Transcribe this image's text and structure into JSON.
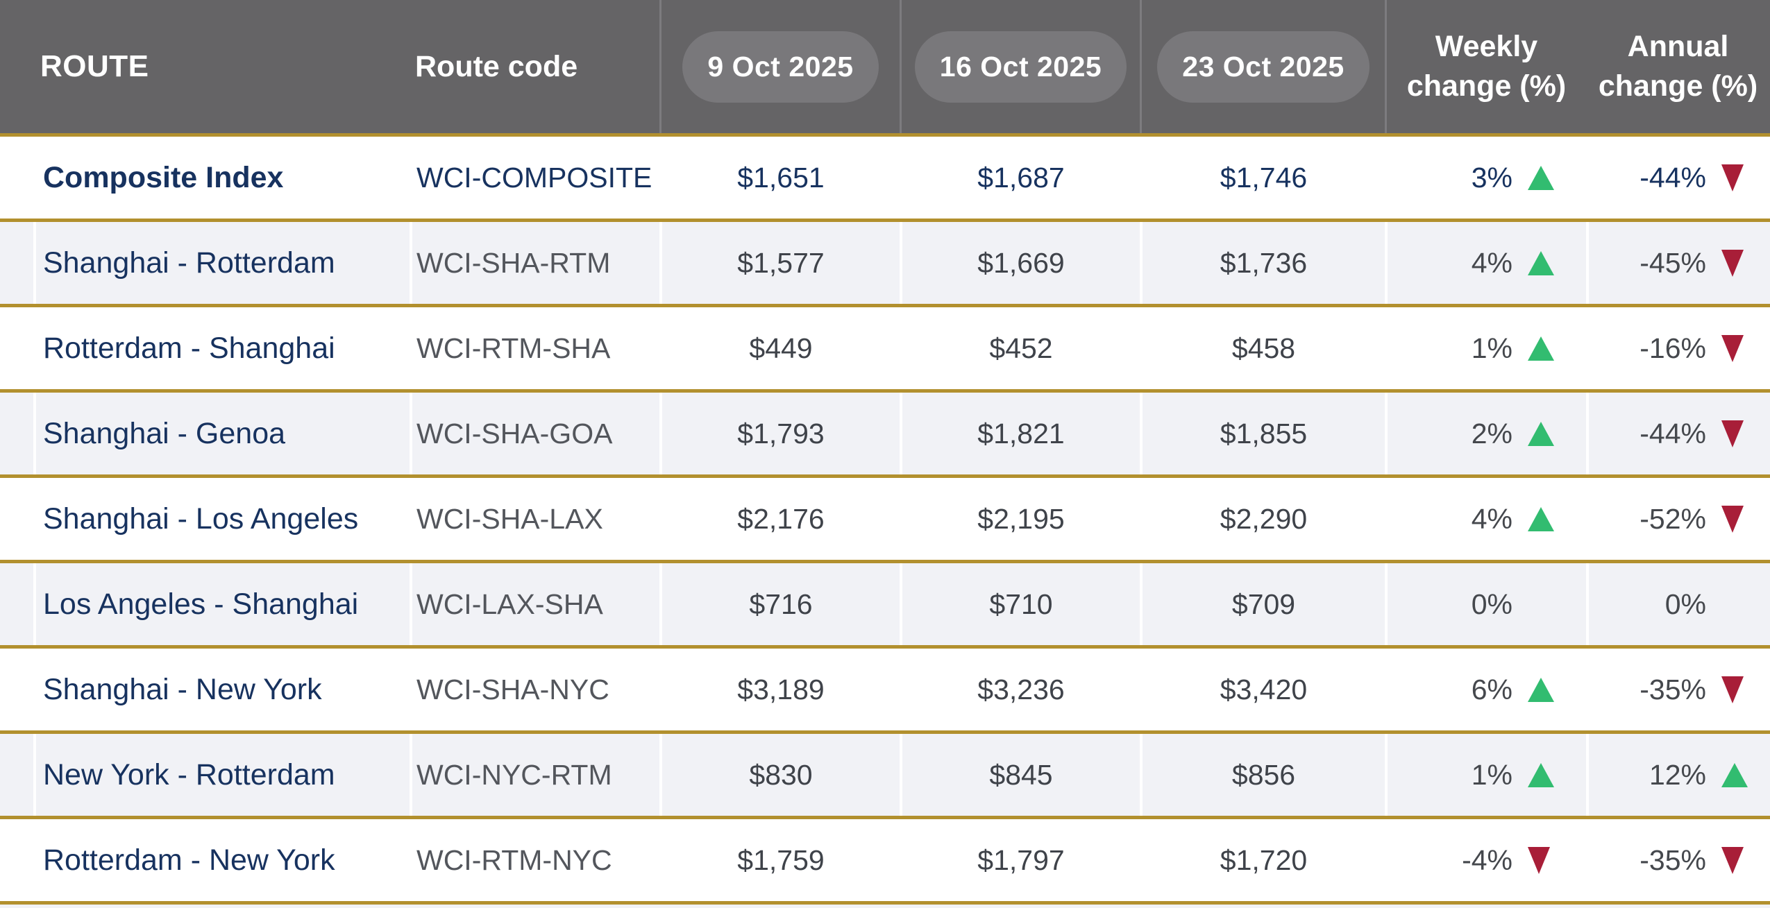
{
  "colors": {
    "header_bg": "#656466",
    "date_pill_bg": "#79787b",
    "gold_border": "#b2902e",
    "navy_text": "#17325f",
    "gray_text": "#53565c",
    "value_text": "#3f434a",
    "stripe_bg": "#f1f2f6",
    "up_green": "#32bc70",
    "down_red": "#a81e38"
  },
  "chart_data": {
    "type": "table",
    "columns": [
      "ROUTE",
      "Route code",
      "9 Oct 2025",
      "16 Oct 2025",
      "23 Oct 2025",
      "Weekly change (%)",
      "Annual change (%)"
    ],
    "header": {
      "route": "ROUTE",
      "code": "Route code",
      "date1": "9 Oct 2025",
      "date2": "16 Oct 2025",
      "date3": "23 Oct 2025",
      "weekly": "Weekly change (%)",
      "annual": "Annual change (%)"
    },
    "rows": [
      {
        "route": "Composite Index",
        "code": "WCI-COMPOSITE",
        "prices": [
          "$1,651",
          "$1,687",
          "$1,746"
        ],
        "weekly": "3%",
        "weekly_dir": "up",
        "annual": "-44%",
        "annual_dir": "down",
        "emphasis": true
      },
      {
        "route": "Shanghai - Rotterdam",
        "code": "WCI-SHA-RTM",
        "prices": [
          "$1,577",
          "$1,669",
          "$1,736"
        ],
        "weekly": "4%",
        "weekly_dir": "up",
        "annual": "-45%",
        "annual_dir": "down",
        "emphasis": false
      },
      {
        "route": "Rotterdam - Shanghai",
        "code": "WCI-RTM-SHA",
        "prices": [
          "$449",
          "$452",
          "$458"
        ],
        "weekly": "1%",
        "weekly_dir": "up",
        "annual": "-16%",
        "annual_dir": "down",
        "emphasis": false
      },
      {
        "route": "Shanghai - Genoa",
        "code": "WCI-SHA-GOA",
        "prices": [
          "$1,793",
          "$1,821",
          "$1,855"
        ],
        "weekly": "2%",
        "weekly_dir": "up",
        "annual": "-44%",
        "annual_dir": "down",
        "emphasis": false
      },
      {
        "route": "Shanghai - Los Angeles",
        "code": "WCI-SHA-LAX",
        "prices": [
          "$2,176",
          "$2,195",
          "$2,290"
        ],
        "weekly": "4%",
        "weekly_dir": "up",
        "annual": "-52%",
        "annual_dir": "down",
        "emphasis": false
      },
      {
        "route": "Los Angeles - Shanghai",
        "code": "WCI-LAX-SHA",
        "prices": [
          "$716",
          "$710",
          "$709"
        ],
        "weekly": "0%",
        "weekly_dir": "none",
        "annual": "0%",
        "annual_dir": "none",
        "emphasis": false
      },
      {
        "route": "Shanghai - New York",
        "code": "WCI-SHA-NYC",
        "prices": [
          "$3,189",
          "$3,236",
          "$3,420"
        ],
        "weekly": "6%",
        "weekly_dir": "up",
        "annual": "-35%",
        "annual_dir": "down",
        "emphasis": false
      },
      {
        "route": "New York - Rotterdam",
        "code": "WCI-NYC-RTM",
        "prices": [
          "$830",
          "$845",
          "$856"
        ],
        "weekly": "1%",
        "weekly_dir": "up",
        "annual": "12%",
        "annual_dir": "up",
        "emphasis": false
      },
      {
        "route": "Rotterdam - New York",
        "code": "WCI-RTM-NYC",
        "prices": [
          "$1,759",
          "$1,797",
          "$1,720"
        ],
        "weekly": "-4%",
        "weekly_dir": "down",
        "annual": "-35%",
        "annual_dir": "down",
        "emphasis": false
      }
    ]
  }
}
